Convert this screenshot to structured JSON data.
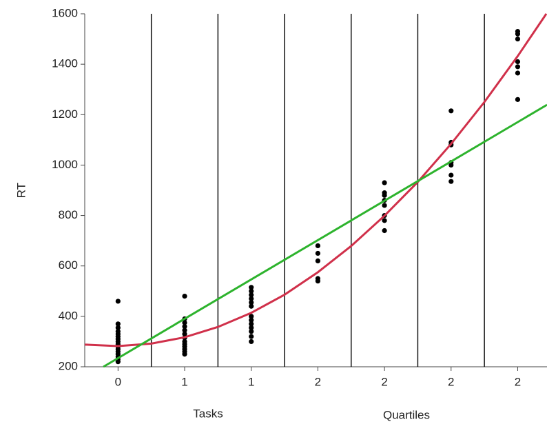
{
  "chart_data": {
    "type": "scatter",
    "y_label": "RT",
    "x_labels": [
      "Tasks",
      "Quartiles"
    ],
    "xlim": [
      -0.5,
      6.44
    ],
    "ylim": [
      200,
      1600
    ],
    "xticks": [
      {
        "value": 0,
        "label": "0"
      },
      {
        "value": 1,
        "label": "1"
      },
      {
        "value": 2,
        "label": "1"
      },
      {
        "value": 3,
        "label": "2"
      },
      {
        "value": 4,
        "label": "2"
      },
      {
        "value": 5,
        "label": "2"
      },
      {
        "value": 6,
        "label": "2"
      }
    ],
    "yticks": [
      200,
      400,
      600,
      800,
      1000,
      1200,
      1400,
      1600
    ],
    "column_dividers": true,
    "series": [
      {
        "type": "scatter",
        "color": "#000000",
        "x": [
          0,
          0,
          0,
          0,
          0,
          0,
          0,
          0,
          0,
          0,
          0,
          0,
          0,
          0,
          0,
          0,
          1,
          1,
          1,
          1,
          1,
          1,
          1,
          1,
          1,
          1,
          1,
          1,
          1,
          2,
          2,
          2,
          2,
          2,
          2,
          2,
          2,
          2,
          2,
          2,
          2,
          2,
          3,
          3,
          3,
          3,
          3,
          4,
          4,
          4,
          4,
          4,
          4,
          4,
          4,
          5,
          5,
          5,
          5,
          5,
          5,
          5,
          6,
          6,
          6,
          6,
          6,
          6,
          6
        ],
        "values": [
          460,
          370,
          355,
          340,
          330,
          320,
          310,
          300,
          290,
          280,
          270,
          260,
          250,
          240,
          230,
          220,
          480,
          390,
          375,
          360,
          345,
          330,
          315,
          300,
          290,
          280,
          270,
          260,
          250,
          515,
          500,
          485,
          470,
          455,
          440,
          400,
          385,
          370,
          355,
          340,
          320,
          300,
          680,
          650,
          620,
          550,
          540,
          930,
          890,
          880,
          860,
          840,
          800,
          780,
          740,
          1215,
          1090,
          1080,
          1010,
          1000,
          960,
          935,
          1530,
          1520,
          1500,
          1410,
          1390,
          1365,
          1260
        ]
      },
      {
        "type": "line",
        "color": "#d0304a",
        "x": [
          -0.5,
          0,
          0.5,
          1,
          1.5,
          2,
          2.5,
          3,
          3.5,
          4,
          4.5,
          5,
          5.5,
          6,
          6.43
        ],
        "values": [
          288,
          282,
          292,
          317,
          358,
          414,
          486,
          575,
          679,
          799,
          933,
          1084,
          1250,
          1432,
          1600
        ]
      },
      {
        "type": "line",
        "color": "#2db32d",
        "x": [
          -0.22,
          6.44
        ],
        "values": [
          200,
          1239
        ]
      }
    ]
  }
}
